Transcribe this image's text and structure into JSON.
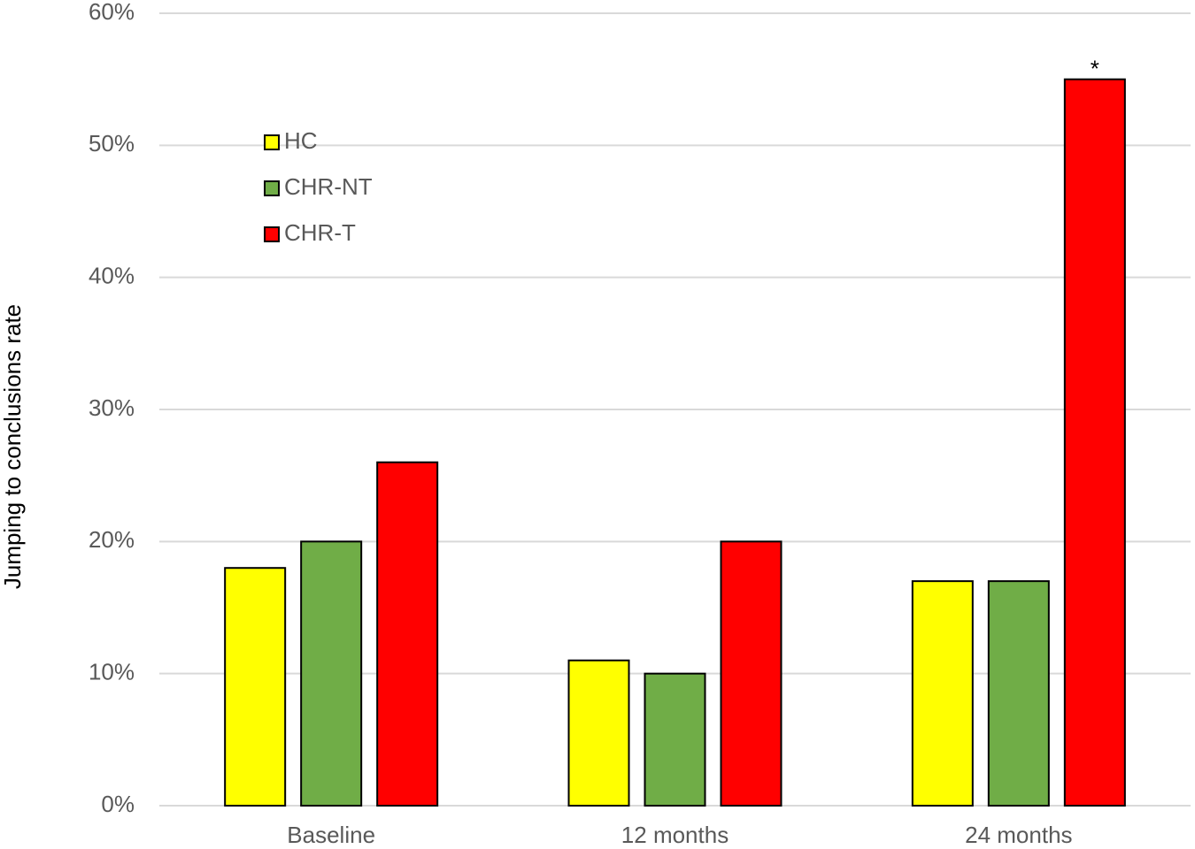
{
  "chart_data": {
    "type": "bar",
    "y_label": "Jumping to conclusions rate",
    "categories": [
      "Baseline",
      "12 months",
      "24 months"
    ],
    "series": [
      {
        "name": "HC",
        "color": "#ffff00",
        "values": [
          18,
          11,
          17
        ]
      },
      {
        "name": "CHR-NT",
        "color": "#70ad47",
        "values": [
          20,
          10,
          17
        ]
      },
      {
        "name": "CHR-T",
        "color": "#ff0000",
        "values": [
          26,
          20,
          55
        ]
      }
    ],
    "annotations": [
      {
        "text": "*"
      }
    ],
    "ylim": [
      0,
      60
    ],
    "yticks": [
      {
        "value": 0,
        "label": "0%"
      },
      {
        "value": 10,
        "label": "10%"
      },
      {
        "value": 20,
        "label": "20%"
      },
      {
        "value": 30,
        "label": "30%"
      },
      {
        "value": 40,
        "label": "40%"
      },
      {
        "value": 50,
        "label": "50%"
      },
      {
        "value": 60,
        "label": "60%"
      }
    ],
    "grid": true,
    "legend": "upper left"
  }
}
